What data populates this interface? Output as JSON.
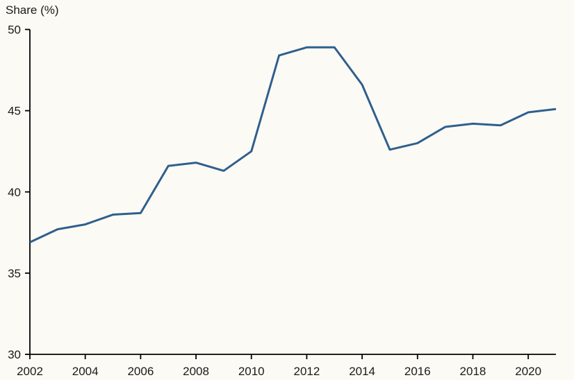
{
  "page": {
    "background_color": "#fbfaf4"
  },
  "chart_data": {
    "type": "line",
    "title": "Share (%)",
    "xlabel": "",
    "ylabel": "Share (%)",
    "x": [
      2002,
      2003,
      2004,
      2005,
      2006,
      2007,
      2008,
      2009,
      2010,
      2011,
      2012,
      2013,
      2014,
      2015,
      2016,
      2017,
      2018,
      2019,
      2020,
      2021
    ],
    "series": [
      {
        "name": "Share",
        "values": [
          36.9,
          37.7,
          38.0,
          38.6,
          38.7,
          41.6,
          41.8,
          41.3,
          42.5,
          48.4,
          48.9,
          48.9,
          46.6,
          42.6,
          43.0,
          44.0,
          44.2,
          44.1,
          44.9,
          45.1
        ]
      }
    ],
    "xlim": [
      2002,
      2021
    ],
    "ylim": [
      30,
      50
    ],
    "yticks": [
      30,
      35,
      40,
      45,
      50
    ],
    "xticks": [
      2002,
      2004,
      2006,
      2008,
      2010,
      2012,
      2014,
      2016,
      2018,
      2020
    ],
    "grid": false,
    "legend_position": "none",
    "line_color": "#2e5f8e",
    "axis_color": "#000000",
    "text_color": "#1a1a1a"
  }
}
